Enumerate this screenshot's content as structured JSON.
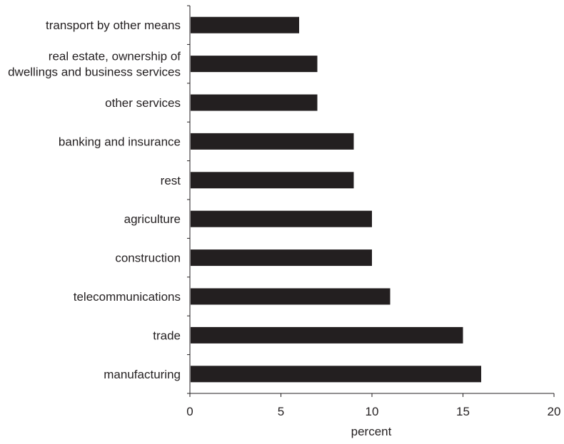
{
  "chart_data": {
    "type": "bar",
    "orientation": "horizontal",
    "categories": [
      [
        "transport by other means"
      ],
      [
        "real estate, ownership of",
        "dwellings and business services"
      ],
      [
        "other services"
      ],
      [
        "banking and insurance"
      ],
      [
        "rest"
      ],
      [
        "agriculture"
      ],
      [
        "construction"
      ],
      [
        "telecommunications"
      ],
      [
        "trade"
      ],
      [
        "manufacturing"
      ]
    ],
    "values": [
      6,
      7,
      7,
      9,
      9,
      10,
      10,
      11,
      15,
      16
    ],
    "xlabel": "percent",
    "ylabel": "",
    "title": "",
    "xlim": [
      0,
      20
    ],
    "xticks": [
      "0",
      "5",
      "10",
      "15",
      "20"
    ],
    "grid": false,
    "legend": "none",
    "colors": {
      "bar": "#231f20",
      "axis": "#231f20",
      "text": "#231f20"
    }
  }
}
